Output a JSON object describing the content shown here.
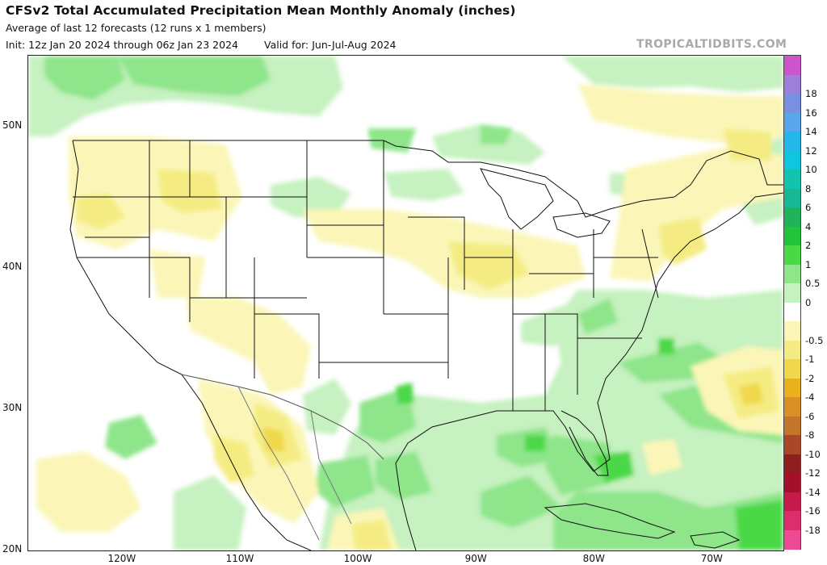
{
  "header": {
    "title": "CFSv2 Total Accumulated Precipitation Mean Monthly Anomaly (inches)",
    "subtitle": "Average of last 12 forecasts (12 runs x 1 members)",
    "init": "Init: 12z Jan 20 2024 through 06z Jan 23 2024",
    "valid": "Valid for: Jun-Jul-Aug 2024",
    "brand": "TROPICALTIDBITS.COM"
  },
  "axes": {
    "lat_labels": [
      {
        "label": "50N",
        "lat": 50
      },
      {
        "label": "40N",
        "lat": 40
      },
      {
        "label": "30N",
        "lat": 30
      },
      {
        "label": "20N",
        "lat": 20
      }
    ],
    "lon_labels": [
      {
        "label": "120W",
        "lon": -120
      },
      {
        "label": "110W",
        "lon": -110
      },
      {
        "label": "100W",
        "lon": -100
      },
      {
        "label": "90W",
        "lon": -90
      },
      {
        "label": "80W",
        "lon": -80
      },
      {
        "label": "70W",
        "lon": -70
      }
    ]
  },
  "colorbar": {
    "levels": [
      {
        "label": "",
        "color": "#cc55cc"
      },
      {
        "label": "18",
        "color": "#9c7fd8"
      },
      {
        "label": "16",
        "color": "#7a8fdf"
      },
      {
        "label": "14",
        "color": "#5aa6ea"
      },
      {
        "label": "12",
        "color": "#23b8ea"
      },
      {
        "label": "10",
        "color": "#0fc6df"
      },
      {
        "label": "8",
        "color": "#12c4b0"
      },
      {
        "label": "6",
        "color": "#17b894"
      },
      {
        "label": "4",
        "color": "#1fb45a"
      },
      {
        "label": "2",
        "color": "#22c53a"
      },
      {
        "label": "1",
        "color": "#4bd846"
      },
      {
        "label": "0.5",
        "color": "#8ee58a"
      },
      {
        "label": "0",
        "color": "#c6f1c0"
      },
      {
        "label": "",
        "color": "#ffffff"
      },
      {
        "label": "-0.5",
        "color": "#fbf6b7"
      },
      {
        "label": "-1",
        "color": "#f4ec82"
      },
      {
        "label": "-2",
        "color": "#efd84b"
      },
      {
        "label": "-4",
        "color": "#e9b21c"
      },
      {
        "label": "-6",
        "color": "#d99125"
      },
      {
        "label": "-8",
        "color": "#c4752c"
      },
      {
        "label": "-10",
        "color": "#a9472a"
      },
      {
        "label": "-12",
        "color": "#8f1e1e"
      },
      {
        "label": "-14",
        "color": "#a40f2a"
      },
      {
        "label": "-16",
        "color": "#c41b4c"
      },
      {
        "label": "-18",
        "color": "#dc2e6d"
      },
      {
        "label": "",
        "color": "#ec4a92"
      }
    ]
  }
}
